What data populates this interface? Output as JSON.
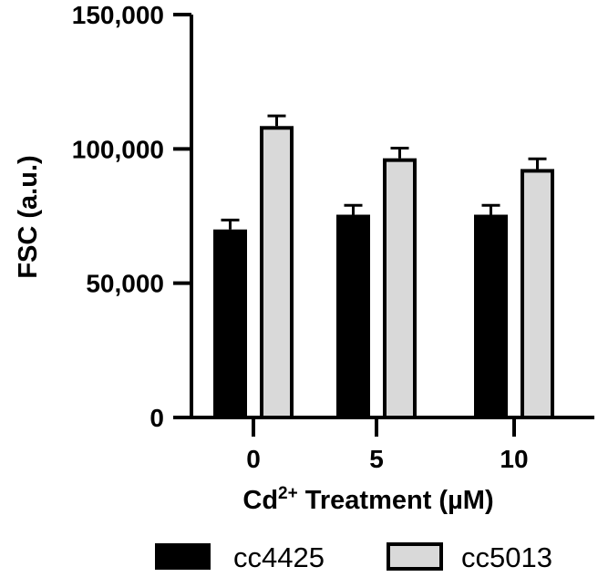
{
  "chart_data": {
    "type": "bar",
    "categories": [
      "0",
      "5",
      "10"
    ],
    "series": [
      {
        "name": "cc4425",
        "values": [
          70000,
          75500,
          75500
        ],
        "errors": [
          3500,
          3500,
          3500
        ],
        "color": "#000000"
      },
      {
        "name": "cc5013",
        "values": [
          108500,
          96500,
          92500
        ],
        "errors": [
          3800,
          3800,
          3800
        ],
        "color": "#d9d9d9"
      }
    ],
    "yticks": [
      "0",
      "50,000",
      "100,000",
      "150,000"
    ],
    "ylim": [
      0,
      150000
    ],
    "ylabel": "FSC (a.u.)",
    "xlabel": {
      "prefix": "Cd",
      "superscript": "2+",
      "suffix": " Treatment (µM)"
    },
    "legend_position": "bottom",
    "grid": false
  }
}
